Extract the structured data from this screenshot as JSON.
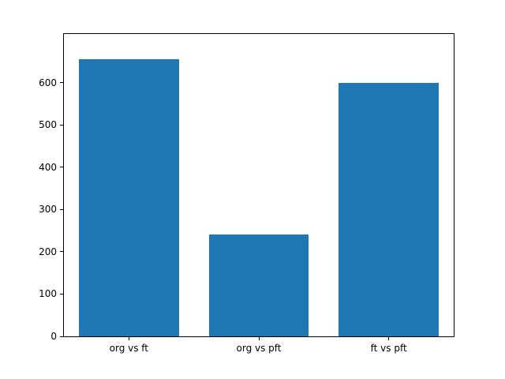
{
  "chart_data": {
    "type": "bar",
    "categories": [
      "org vs ft",
      "org vs pft",
      "ft vs pft"
    ],
    "values": [
      655,
      240,
      600
    ],
    "title": "",
    "xlabel": "",
    "ylabel": "",
    "ylim": [
      0,
      715
    ],
    "yticks": [
      0,
      100,
      200,
      300,
      400,
      500,
      600
    ],
    "bar_color": "#1f77b4",
    "bar_width_fraction": 0.77,
    "grid": false,
    "legend_position": "none"
  }
}
